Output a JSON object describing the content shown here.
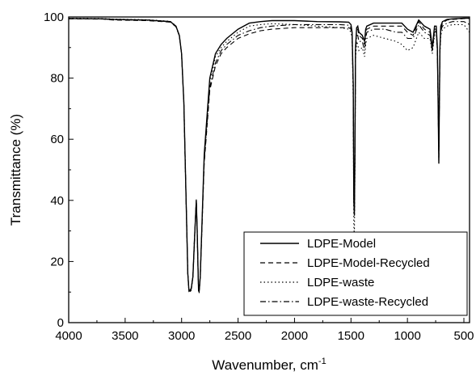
{
  "chart_data": {
    "type": "line",
    "title": "",
    "xlabel": "Wavenumber, cm",
    "xlabel_superscript": "-1",
    "ylabel": "Transmittance (%)",
    "xlim": [
      4000,
      450
    ],
    "ylim": [
      0,
      100
    ],
    "x_reversed": true,
    "x_ticks": [
      4000,
      3500,
      3000,
      2500,
      2000,
      1500,
      1000,
      500
    ],
    "y_ticks": [
      0,
      20,
      40,
      60,
      80,
      100
    ],
    "grid": false,
    "legend_position": "bottom-right",
    "series": [
      {
        "name": "LDPE-Model",
        "dash": "solid",
        "x": [
          4000,
          3700,
          3600,
          3300,
          3100,
          3050,
          3020,
          3000,
          2980,
          2960,
          2945,
          2935,
          2925,
          2915,
          2900,
          2885,
          2870,
          2862,
          2855,
          2850,
          2845,
          2835,
          2800,
          2750,
          2700,
          2650,
          2600,
          2500,
          2400,
          2300,
          2200,
          2000,
          1800,
          1600,
          1520,
          1500,
          1490,
          1480,
          1475,
          1470,
          1465,
          1460,
          1450,
          1440,
          1430,
          1400,
          1380,
          1370,
          1360,
          1300,
          1200,
          1100,
          1050,
          1000,
          950,
          900,
          850,
          800,
          780,
          760,
          745,
          735,
          728,
          722,
          718,
          712,
          705,
          690,
          650,
          600,
          550,
          500,
          450
        ],
        "y": [
          99.5,
          99.4,
          99.2,
          99,
          98.5,
          97,
          94,
          88,
          72,
          40,
          16,
          10.5,
          10.3,
          11,
          15,
          28,
          40,
          30,
          18,
          10.5,
          10,
          15,
          55,
          80,
          88,
          91,
          93,
          96,
          98,
          98.5,
          98.8,
          98.8,
          98.5,
          98.4,
          98.3,
          97.5,
          95,
          78,
          40,
          35,
          55,
          90,
          96.5,
          97,
          95,
          94,
          92,
          96,
          97,
          98,
          98,
          98,
          98,
          96,
          95,
          99,
          97,
          96,
          90,
          97,
          97,
          90,
          70,
          52,
          70,
          90,
          97,
          98.5,
          99.2,
          99.4,
          99.5,
          99.6,
          99.6
        ]
      },
      {
        "name": "LDPE-Model-Recycled",
        "dash": "dashed",
        "x": [
          4000,
          3700,
          3600,
          3300,
          3100,
          3050,
          3020,
          3000,
          2980,
          2960,
          2945,
          2935,
          2925,
          2915,
          2900,
          2885,
          2870,
          2862,
          2855,
          2850,
          2845,
          2835,
          2800,
          2750,
          2700,
          2650,
          2600,
          2500,
          2400,
          2300,
          2200,
          2000,
          1800,
          1600,
          1520,
          1500,
          1490,
          1480,
          1475,
          1470,
          1465,
          1460,
          1450,
          1440,
          1430,
          1400,
          1380,
          1370,
          1360,
          1300,
          1200,
          1100,
          1050,
          1000,
          950,
          900,
          850,
          800,
          780,
          760,
          745,
          735,
          728,
          722,
          718,
          712,
          705,
          690,
          650,
          600,
          550,
          500,
          450
        ],
        "y": [
          99.4,
          99.3,
          99,
          98.8,
          98.3,
          96.8,
          93.8,
          87.8,
          71.8,
          39.8,
          16,
          10.8,
          10.6,
          11.3,
          15.3,
          28.3,
          40.3,
          30.3,
          18.3,
          11,
          10.5,
          15.3,
          52,
          76,
          84,
          88,
          90,
          93,
          94.5,
          95.5,
          96,
          96.5,
          96.5,
          96.5,
          96.5,
          96,
          94,
          78,
          42,
          37,
          56,
          89,
          95.5,
          96,
          94,
          93,
          91,
          95,
          96,
          97,
          97,
          97,
          97,
          95,
          94,
          98.5,
          96,
          95,
          89,
          96,
          96,
          89,
          70,
          53,
          70,
          89,
          96,
          98,
          99,
          99.2,
          99.3,
          99.5,
          99.5
        ]
      },
      {
        "name": "LDPE-waste",
        "dash": "dotted",
        "x": [
          4000,
          3700,
          3600,
          3300,
          3100,
          3050,
          3020,
          3000,
          2980,
          2960,
          2945,
          2935,
          2925,
          2915,
          2900,
          2885,
          2870,
          2862,
          2855,
          2850,
          2845,
          2835,
          2800,
          2750,
          2700,
          2650,
          2600,
          2500,
          2400,
          2300,
          2200,
          2000,
          1800,
          1600,
          1520,
          1500,
          1490,
          1480,
          1475,
          1470,
          1465,
          1460,
          1450,
          1440,
          1430,
          1400,
          1380,
          1370,
          1360,
          1300,
          1200,
          1100,
          1050,
          1000,
          950,
          900,
          850,
          800,
          780,
          760,
          745,
          735,
          728,
          722,
          718,
          712,
          705,
          690,
          650,
          600,
          550,
          500,
          450
        ],
        "y": [
          99.6,
          99.5,
          99.3,
          99.1,
          98.6,
          97.1,
          94.1,
          88.1,
          72.1,
          40.1,
          15.8,
          10.1,
          9.9,
          10.6,
          14.6,
          27.6,
          39.6,
          29.6,
          17.6,
          10.1,
          9.6,
          14.6,
          54,
          79,
          87,
          90,
          92,
          95,
          97,
          97.5,
          97.8,
          97.5,
          97,
          96.5,
          96,
          95,
          93,
          72,
          32,
          28,
          50,
          86,
          92,
          91,
          89,
          90,
          87,
          91,
          93,
          94,
          93,
          92,
          91,
          89,
          90,
          95,
          93,
          93,
          88,
          94,
          95,
          89,
          71,
          56,
          71,
          88,
          94,
          96,
          97,
          97.5,
          97.5,
          97.5,
          95
        ]
      },
      {
        "name": "LDPE-waste-Recycled",
        "dash": "dash-dot",
        "x": [
          4000,
          3700,
          3600,
          3300,
          3100,
          3050,
          3020,
          3000,
          2980,
          2960,
          2945,
          2935,
          2925,
          2915,
          2900,
          2885,
          2870,
          2862,
          2855,
          2850,
          2845,
          2835,
          2800,
          2750,
          2700,
          2650,
          2600,
          2500,
          2400,
          2300,
          2200,
          2000,
          1800,
          1600,
          1520,
          1500,
          1490,
          1480,
          1475,
          1470,
          1465,
          1460,
          1450,
          1440,
          1430,
          1400,
          1380,
          1370,
          1360,
          1300,
          1200,
          1100,
          1050,
          1000,
          950,
          900,
          850,
          800,
          780,
          760,
          745,
          735,
          728,
          722,
          718,
          712,
          705,
          690,
          650,
          600,
          550,
          500,
          450
        ],
        "y": [
          99.5,
          99.4,
          99.1,
          98.9,
          98.4,
          96.9,
          93.9,
          87.9,
          71.9,
          39.9,
          16.2,
          10.6,
          10.4,
          11.1,
          15.1,
          28.1,
          40.1,
          30.1,
          18.1,
          10.6,
          10.2,
          15.1,
          53,
          77,
          85,
          89,
          91,
          94,
          95.5,
          96.5,
          97,
          97.5,
          97.5,
          97.5,
          97.3,
          96.5,
          94,
          76,
          40,
          36,
          55,
          88,
          94,
          94,
          92,
          92,
          89,
          93,
          95,
          96,
          96,
          95,
          95,
          93,
          93,
          97.5,
          95,
          94,
          89,
          95,
          95.5,
          89,
          70.5,
          54,
          70.5,
          89,
          95.5,
          97,
          98,
          98.5,
          98.5,
          98.5,
          97.5
        ]
      }
    ]
  }
}
